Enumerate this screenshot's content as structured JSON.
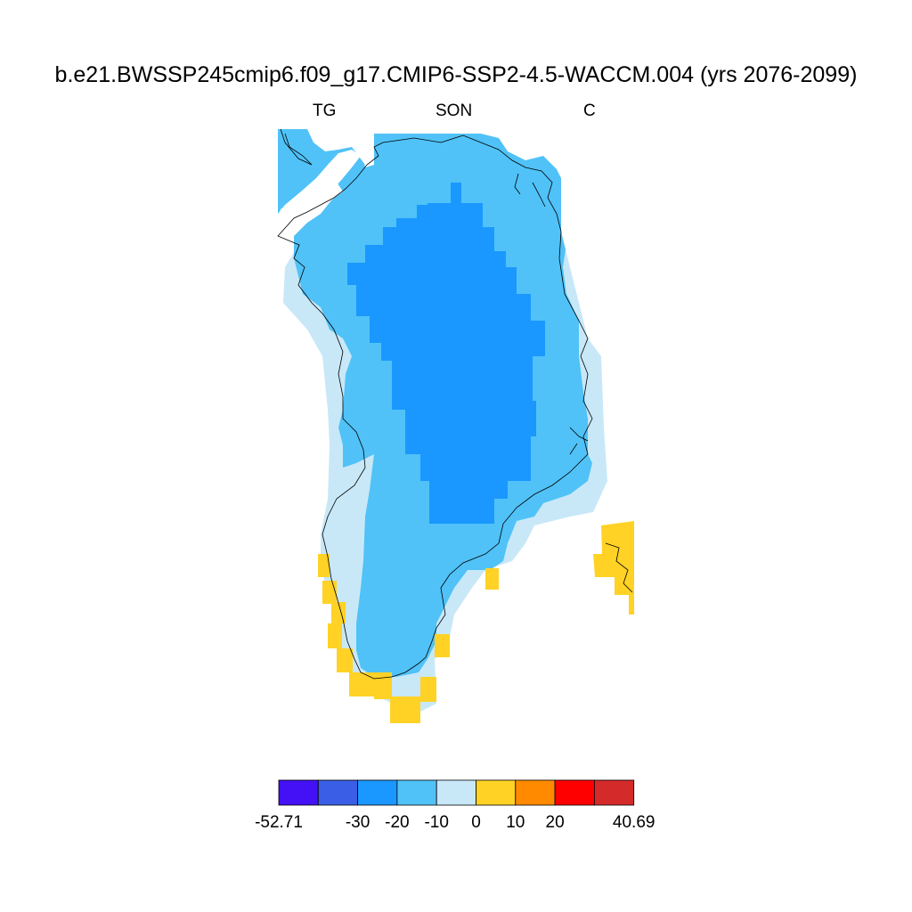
{
  "header": {
    "title": "b.e21.BWSSP245cmip6.f09_g17.CMIP6-SSP2-4.5-WACCM.004 (yrs 2076-2099)",
    "left_label": "TG",
    "center_label": "SON",
    "right_label": "C"
  },
  "colorbar": {
    "colors": [
      "#4410f5",
      "#3a5fe6",
      "#1a98ff",
      "#50c2f7",
      "#c8e8f8",
      "#ffd225",
      "#ff8a00",
      "#ff0000",
      "#d42a2a"
    ],
    "labels": [
      "-52.71",
      "-30",
      "-20",
      "-10",
      "0",
      "10",
      "20",
      "40.69"
    ],
    "label_at_box_edge": [
      0,
      2,
      3,
      4,
      5,
      6,
      7,
      9
    ]
  },
  "map": {
    "region": "Greenland",
    "variable": "TG",
    "season": "SON",
    "units": "C",
    "colors": {
      "outer_band": "#c8e8f8",
      "coastal": "#50c2f7",
      "interior": "#1a98ff",
      "positive": "#ffd225",
      "coastline": "#000000"
    }
  }
}
